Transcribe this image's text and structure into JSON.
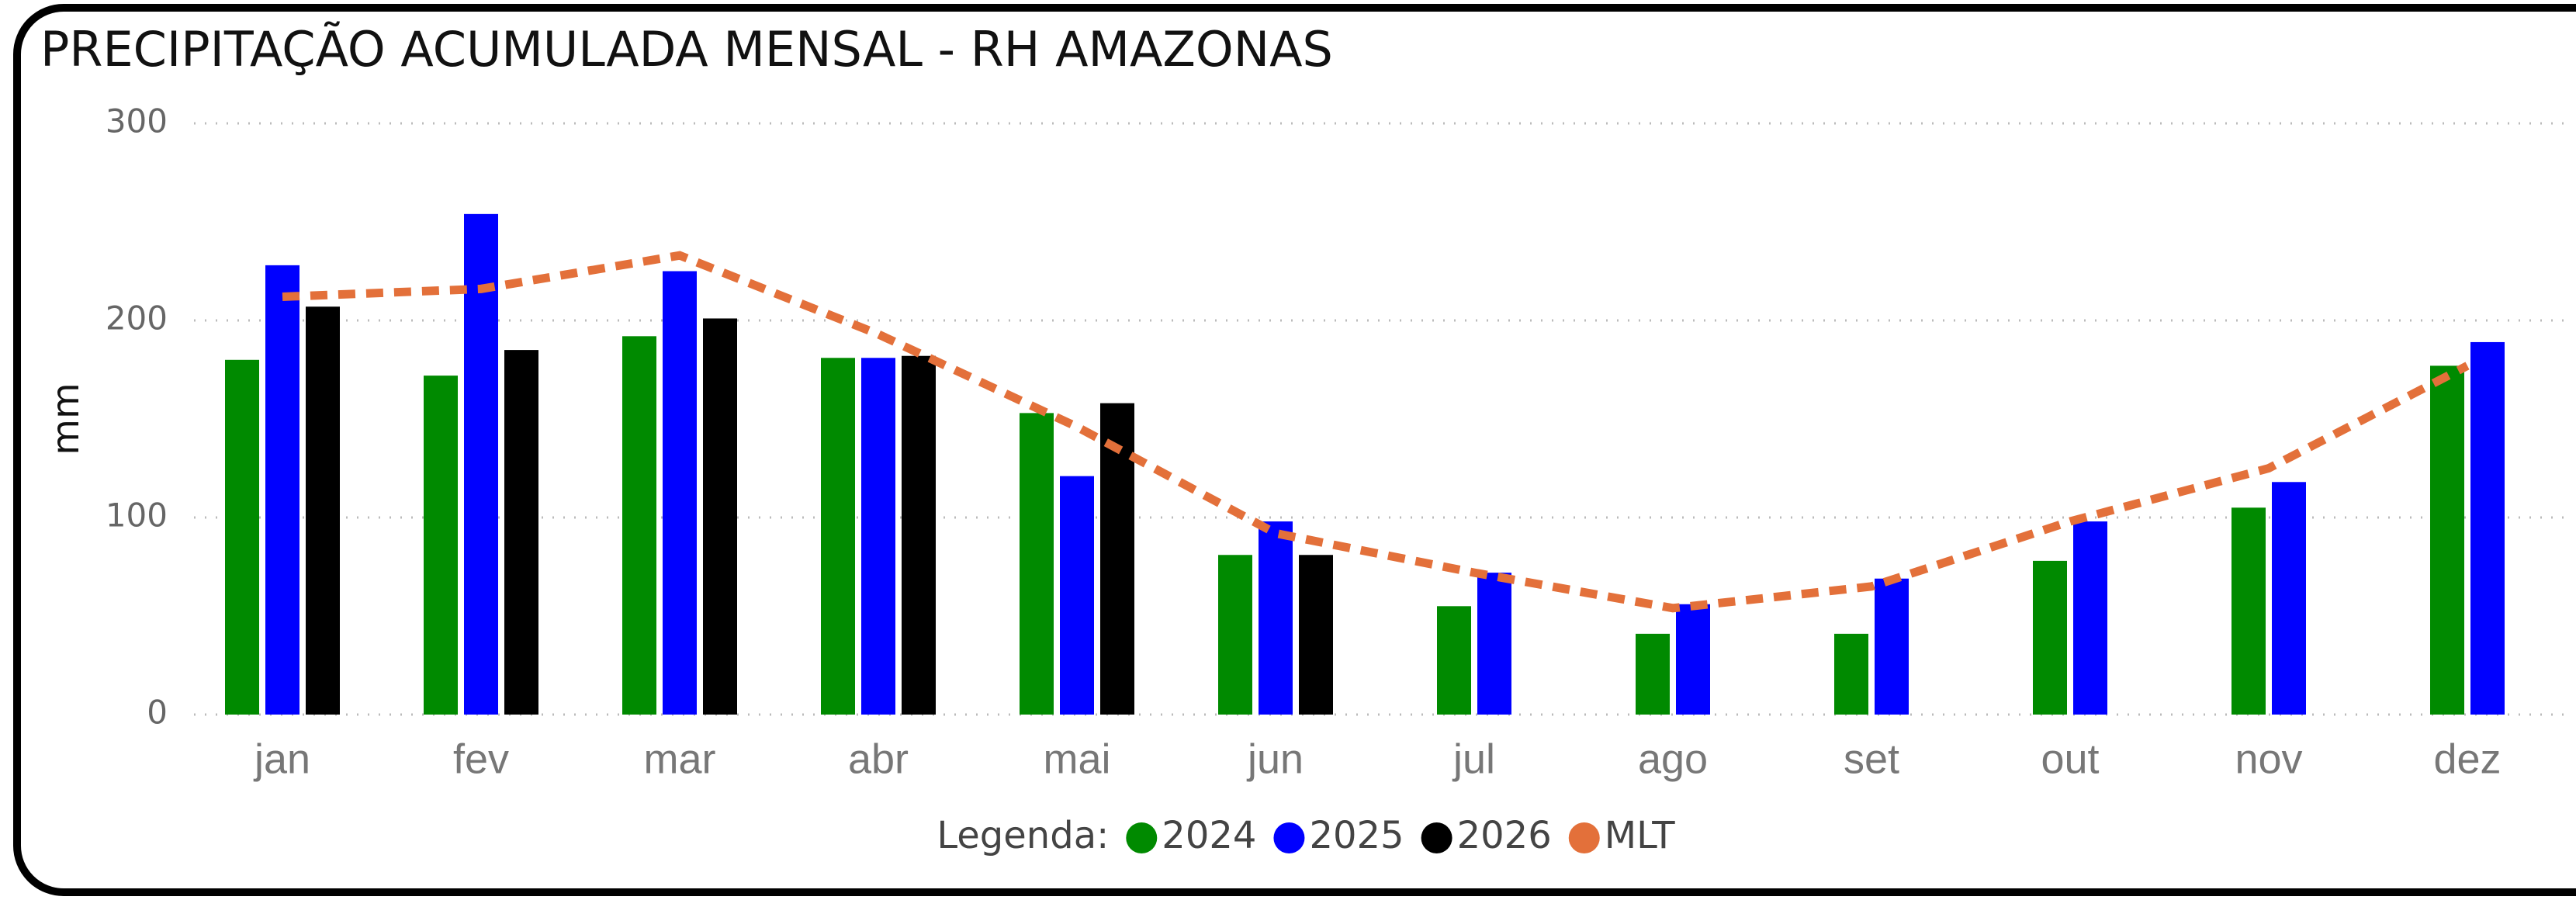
{
  "chart_data": {
    "type": "bar",
    "title": "PRECIPITAÇÃO ACUMULADA MENSAL - RH AMAZONAS",
    "y_label": "mm",
    "legend_title": "Legenda:",
    "categories": [
      "jan",
      "fev",
      "mar",
      "abr",
      "mai",
      "jun",
      "jul",
      "ago",
      "set",
      "out",
      "nov",
      "dez"
    ],
    "series": [
      {
        "name": "2024",
        "color": "#008a00",
        "values": [
          180,
          172,
          192,
          181,
          153,
          81,
          55,
          41,
          41,
          78,
          105,
          177
        ]
      },
      {
        "name": "2025",
        "color": "#0000ff",
        "values": [
          228,
          254,
          225,
          181,
          121,
          98,
          72,
          56,
          69,
          98,
          118,
          189
        ]
      },
      {
        "name": "2026",
        "color": "#000000",
        "values": [
          207,
          185,
          201,
          182,
          158,
          81,
          null,
          null,
          null,
          null,
          null,
          null
        ]
      },
      {
        "name": "MLT",
        "color": "#e3703a",
        "type": "line",
        "values": [
          212,
          216,
          233,
          193,
          146,
          92,
          72,
          54,
          65,
          98,
          125,
          177
        ]
      }
    ],
    "ylim": [
      0,
      300
    ],
    "yticks": [
      0,
      100,
      200,
      300
    ],
    "grid": true
  }
}
